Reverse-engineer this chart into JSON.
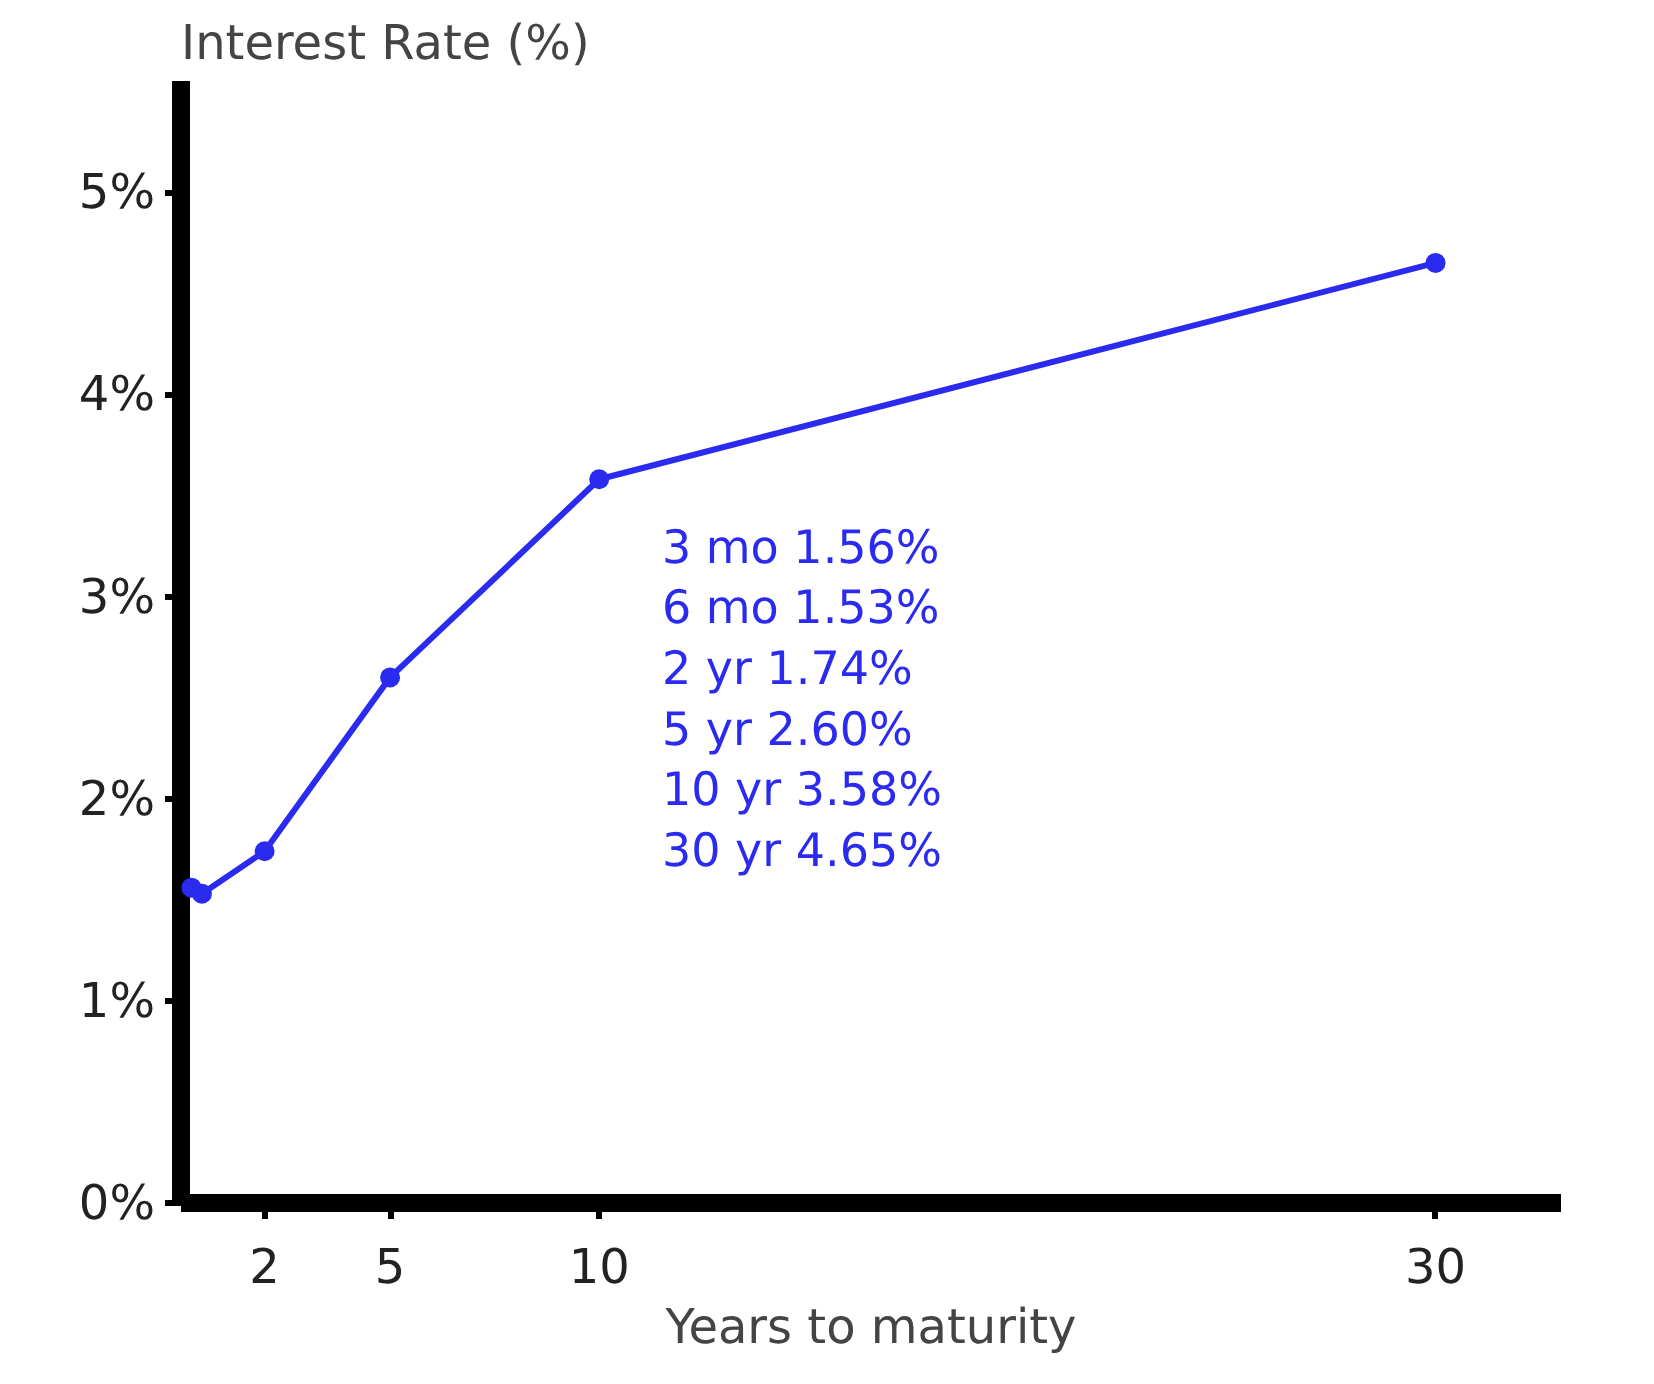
{
  "chart_data": {
    "type": "line",
    "xlabel": "Years to maturity",
    "ylabel": "Interest Rate (%)",
    "x": [
      0.25,
      0.5,
      2,
      5,
      10,
      30
    ],
    "series": [
      {
        "color": "#2b2bf0",
        "values": [
          1.56,
          1.53,
          1.74,
          2.6,
          3.58,
          4.65
        ]
      }
    ],
    "xlim": [
      0,
      33
    ],
    "ylim": [
      0,
      5.55
    ],
    "xticks": [
      2,
      5,
      10,
      30
    ],
    "yticks": [
      {
        "value": 0,
        "label": "0%"
      },
      {
        "value": 1,
        "label": "1%"
      },
      {
        "value": 2,
        "label": "2%"
      },
      {
        "value": 3,
        "label": "3%"
      },
      {
        "value": 4,
        "label": "4%"
      },
      {
        "value": 5,
        "label": "5%"
      }
    ],
    "annotations": [
      "3  mo  1.56%",
      "6  mo  1.53%",
      "2   yr   1.74%",
      "5   yr   2.60%",
      "10 yr   3.58%",
      "30 yr   4.65%"
    ],
    "marker": "circle",
    "grid": false
  }
}
